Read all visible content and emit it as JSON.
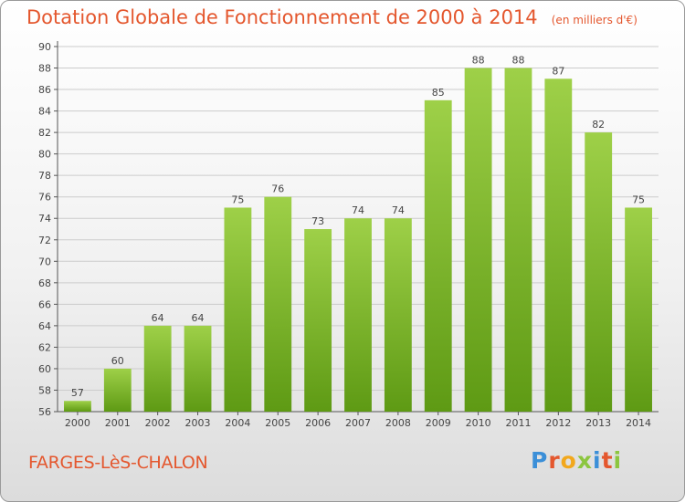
{
  "header": {
    "title": "Dotation Globale de Fonctionnement de 2000 à 2014",
    "unit": "(en milliers d'€)"
  },
  "footer": {
    "location": "FARGES-LèS-CHALON",
    "logo_letters": [
      "P",
      "r",
      "o",
      "x",
      "i",
      "t",
      "i"
    ],
    "logo_colors": [
      "#3b8fd8",
      "#e4572e",
      "#f2a81d",
      "#8cc63f",
      "#3b8fd8",
      "#e4572e",
      "#8cc63f"
    ]
  },
  "colors": {
    "bar_light": "#9ed048",
    "bar_dark": "#5e9a14",
    "title": "#e4572e",
    "grid": "#cccccc"
  },
  "chart_data": {
    "type": "bar",
    "title": "Dotation Globale de Fonctionnement de 2000 à 2014",
    "subtitle": "(en milliers d'€)",
    "xlabel": "",
    "ylabel": "",
    "categories": [
      "2000",
      "2001",
      "2002",
      "2003",
      "2004",
      "2005",
      "2006",
      "2007",
      "2008",
      "2009",
      "2010",
      "2011",
      "2012",
      "2013",
      "2014"
    ],
    "values": [
      57,
      60,
      64,
      64,
      75,
      76,
      73,
      74,
      74,
      85,
      88,
      88,
      87,
      82,
      75
    ],
    "ylim": [
      56,
      90
    ],
    "yticks": [
      56,
      58,
      60,
      62,
      64,
      66,
      68,
      70,
      72,
      74,
      76,
      78,
      80,
      82,
      84,
      86,
      88,
      90
    ],
    "grid": true,
    "data_labels": true
  }
}
